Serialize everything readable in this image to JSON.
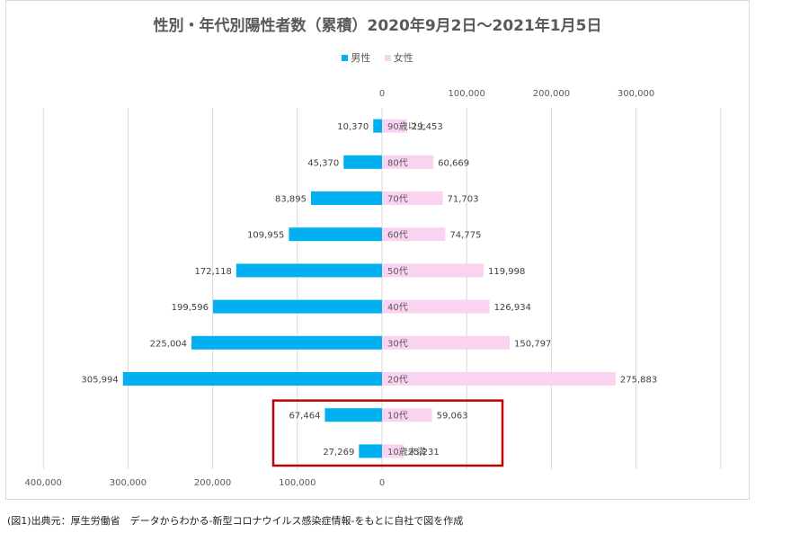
{
  "chart_data": {
    "type": "bar",
    "orientation": "horizontal-butterfly",
    "title": "性別・年代別陽性者数（累積）2020年9月2日～2021年1月5日",
    "categories": [
      "90歳以上",
      "80代",
      "70代",
      "60代",
      "50代",
      "40代",
      "30代",
      "20代",
      "10代",
      "10歳未満"
    ],
    "series": [
      {
        "name": "男性",
        "color": "#00b0f0",
        "values": [
          10370,
          45370,
          83895,
          109955,
          172118,
          199596,
          225004,
          305994,
          67464,
          27269
        ],
        "labels": [
          "10,370",
          "45,370",
          "83,895",
          "109,955",
          "172,118",
          "199,596",
          "225,004",
          "305,994",
          "67,464",
          "27,269"
        ]
      },
      {
        "name": "女性",
        "color": "#f9d3f0",
        "values": [
          29453,
          60669,
          71703,
          74775,
          119998,
          126934,
          150797,
          275883,
          59063,
          25231
        ],
        "labels": [
          "29,453",
          "60,669",
          "71,703",
          "74,775",
          "119,998",
          "126,934",
          "150,797",
          "275,883",
          "59,063",
          "25,231"
        ]
      }
    ],
    "left_axis": {
      "range": [
        0,
        400000
      ],
      "ticks": [
        "400,000",
        "300,000",
        "200,000",
        "100,000",
        "0"
      ]
    },
    "right_axis": {
      "range": [
        0,
        400000
      ],
      "ticks": [
        "0",
        "100,000",
        "200,000",
        "300,000"
      ]
    },
    "highlight": {
      "categories": [
        "10代",
        "10歳未満"
      ],
      "color": "#c00000"
    },
    "legend": {
      "position": "top"
    }
  },
  "source_note": "(図1)出典元：厚生労働省　データからわかる-新型コロナウイルス感染症情報-をもとに自社で図を作成"
}
